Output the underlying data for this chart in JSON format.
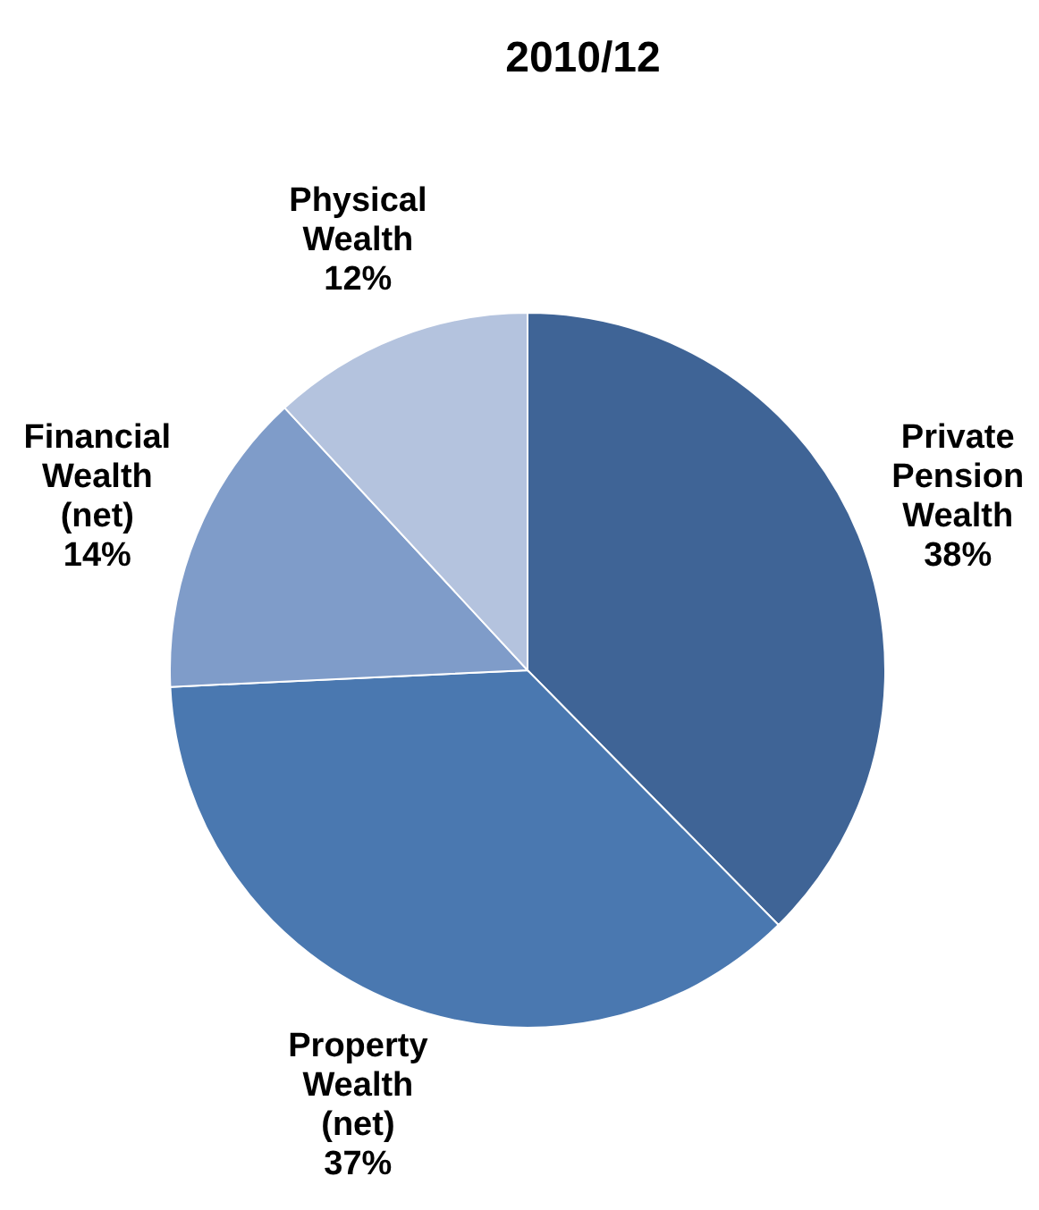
{
  "chart_data": {
    "type": "pie",
    "title": "2010/12",
    "categories": [
      "Private Pension Wealth",
      "Property Wealth (net)",
      "Financial Wealth (net)",
      "Physical Wealth"
    ],
    "values": [
      38,
      37,
      14,
      12
    ],
    "value_labels": [
      "38%",
      "37%",
      "14%",
      "12%"
    ],
    "colors": [
      "#3f6496",
      "#4a78b0",
      "#7f9cc9",
      "#b4c3de"
    ],
    "legend": false
  }
}
